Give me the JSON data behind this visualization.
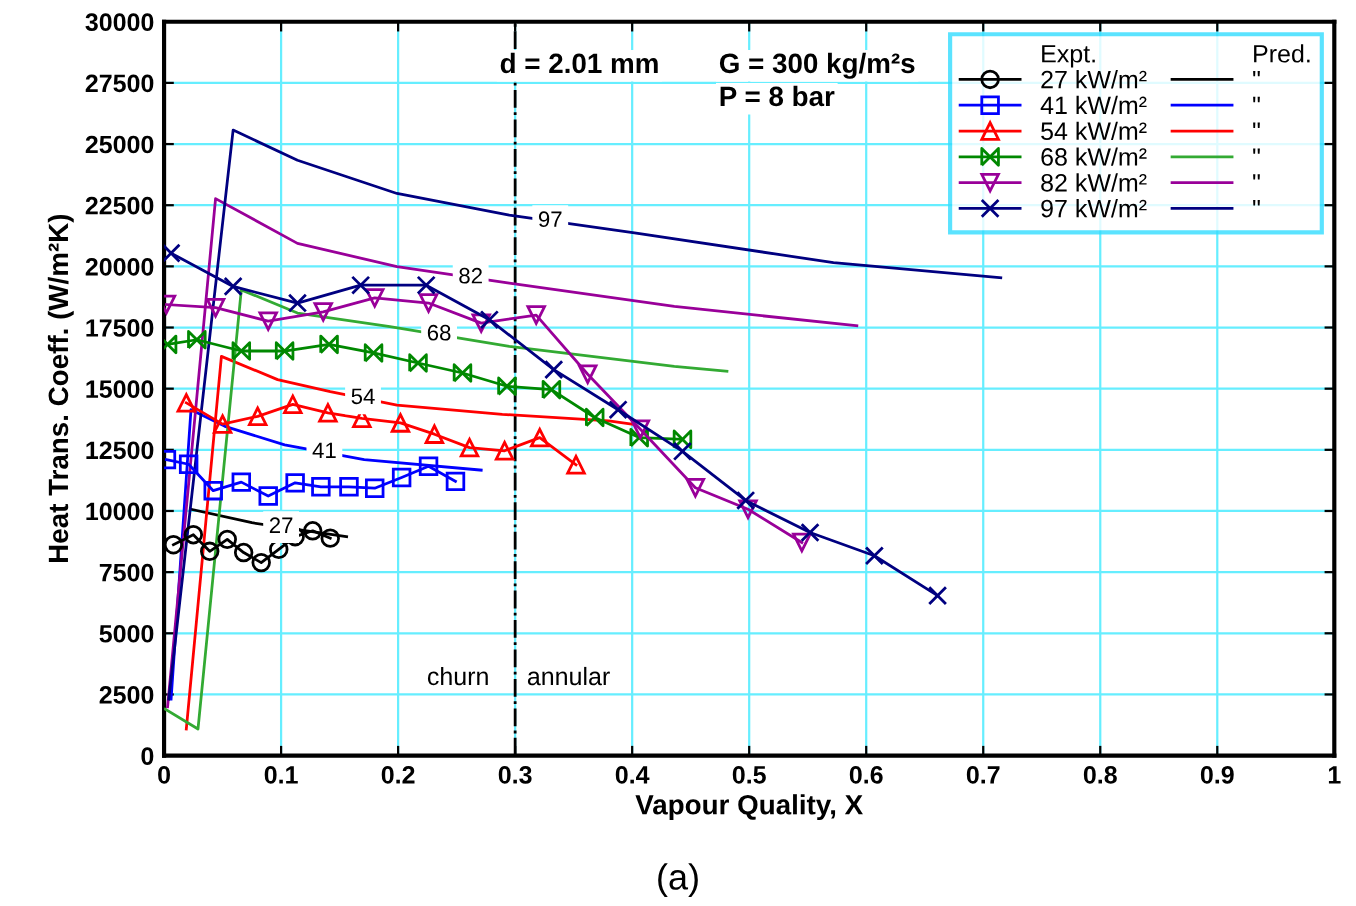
{
  "chart_data": {
    "type": "line",
    "xlabel": "Vapour Quality, X",
    "ylabel": "Heat Trans. Coeff. (W/m²K)",
    "legend_title": [
      "Expt.",
      "Pred."
    ],
    "xlim": [
      0,
      1
    ],
    "xticks": [
      0,
      0.1,
      0.2,
      0.3,
      0.4,
      0.5,
      0.6,
      0.7,
      0.8,
      0.9,
      1
    ],
    "ylim": [
      0,
      30000
    ],
    "yticks": [
      0,
      2500,
      5000,
      7500,
      10000,
      12500,
      15000,
      17500,
      20000,
      22500,
      25000,
      27500,
      30000
    ],
    "grid": true,
    "legend": "top right",
    "ref_lines": [
      {
        "axis": "x",
        "value": 0.3,
        "color": "#000000",
        "line_style": "dashdot"
      }
    ],
    "annotations": [
      "d = 2.01 mm",
      "G = 300 kg/m²s",
      "P = 8 bar",
      "churn",
      "annular",
      {
        "text": "27",
        "x": 0.1,
        "y": 9340
      },
      {
        "text": "41",
        "x": 0.137,
        "y": 12400
      },
      {
        "text": "54",
        "x": 0.17,
        "y": 14610
      },
      {
        "text": "68",
        "x": 0.235,
        "y": 17210
      },
      {
        "text": "82",
        "x": 0.262,
        "y": 19540
      },
      {
        "text": "97",
        "x": 0.33,
        "y": 21850
      },
      "(a)"
    ],
    "series": [
      {
        "name": "27 kW/m²",
        "color": "#000000",
        "marker": "circle",
        "x": [
          0.008,
          0.025,
          0.039,
          0.054,
          0.068,
          0.083,
          0.098,
          0.112,
          0.127,
          0.142
        ],
        "values": [
          8620,
          9030,
          8350,
          8840,
          8300,
          7890,
          8430,
          8950,
          9190,
          8890
        ]
      },
      {
        "name": "41 kW/m²",
        "color": "#0000ff",
        "marker": "square",
        "x": [
          0.002,
          0.021,
          0.042,
          0.066,
          0.089,
          0.112,
          0.134,
          0.158,
          0.18,
          0.203,
          0.226,
          0.249
        ],
        "values": [
          12100,
          11910,
          10830,
          11180,
          10610,
          11150,
          10990,
          10990,
          10930,
          11370,
          11830,
          11210
        ]
      },
      {
        "name": "54 kW/m²",
        "color": "#ff0000",
        "marker": "triangle",
        "x": [
          0.019,
          0.05,
          0.08,
          0.11,
          0.14,
          0.169,
          0.202,
          0.231,
          0.261,
          0.291,
          0.321,
          0.352
        ],
        "values": [
          14420,
          13550,
          13870,
          14360,
          14010,
          13790,
          13600,
          13140,
          12590,
          12460,
          13000,
          11890
        ]
      },
      {
        "name": "68 kW/m²",
        "color": "#008800",
        "marker": "diamond",
        "x": [
          0.003,
          0.028,
          0.066,
          0.103,
          0.141,
          0.179,
          0.217,
          0.255,
          0.293,
          0.331,
          0.368,
          0.406,
          0.443
        ],
        "values": [
          16810,
          17000,
          16540,
          16540,
          16810,
          16460,
          16050,
          15640,
          15100,
          14960,
          13820,
          13000,
          12930
        ]
      },
      {
        "name": "82 kW/m²",
        "color": "#990099",
        "marker": "triangle_down",
        "x": [
          0.002,
          0.044,
          0.089,
          0.136,
          0.18,
          0.226,
          0.271,
          0.318,
          0.362,
          0.407,
          0.454,
          0.499,
          0.545
        ],
        "values": [
          18440,
          18310,
          17760,
          18140,
          18710,
          18500,
          17680,
          18010,
          15590,
          13340,
          10950,
          10070,
          8710
        ]
      },
      {
        "name": "97 kW/m²",
        "color": "#000080",
        "marker": "cross",
        "x": [
          0.006,
          0.059,
          0.114,
          0.168,
          0.224,
          0.278,
          0.333,
          0.388,
          0.443,
          0.497,
          0.552,
          0.607,
          0.661
        ],
        "values": [
          20540,
          19180,
          18500,
          19230,
          19230,
          17820,
          15780,
          14140,
          12440,
          10430,
          9120,
          8170,
          6540
        ]
      },
      {
        "name": "\"",
        "color": "#000000",
        "marker": "none",
        "x": [
          0.024,
          0.075,
          0.156
        ],
        "values": [
          10060,
          9520,
          8950
        ]
      },
      {
        "name": "\"",
        "color": "#0000ff",
        "marker": "none",
        "x": [
          0.006,
          0.023,
          0.052,
          0.103,
          0.171,
          0.271
        ],
        "values": [
          2310,
          14140,
          13460,
          12700,
          12100,
          11670
        ]
      },
      {
        "name": "\"",
        "color": "#ff0000",
        "marker": "none",
        "x": [
          0.019,
          0.049,
          0.097,
          0.142,
          0.199,
          0.289,
          0.38,
          0.4
        ],
        "values": [
          1090,
          16320,
          15370,
          14880,
          14330,
          13950,
          13680,
          13550
        ]
      },
      {
        "name": "\"",
        "color": "#33aa33",
        "marker": "none",
        "x": [
          0.001,
          0.029,
          0.066,
          0.114,
          0.193,
          0.295,
          0.436,
          0.481
        ],
        "values": [
          1900,
          1090,
          19040,
          18090,
          17540,
          16730,
          15910,
          15710
        ]
      },
      {
        "name": "\"",
        "color": "#990099",
        "marker": "none",
        "x": [
          0.003,
          0.044,
          0.114,
          0.199,
          0.295,
          0.436,
          0.592
        ],
        "values": [
          2000,
          22770,
          20940,
          19990,
          19310,
          18360,
          17570
        ]
      },
      {
        "name": "\"",
        "color": "#000080",
        "marker": "none",
        "x": [
          0.004,
          0.059,
          0.114,
          0.199,
          0.295,
          0.402,
          0.572,
          0.715
        ],
        "values": [
          2310,
          25570,
          24340,
          22980,
          22090,
          21370,
          20150,
          19530
        ]
      }
    ]
  }
}
